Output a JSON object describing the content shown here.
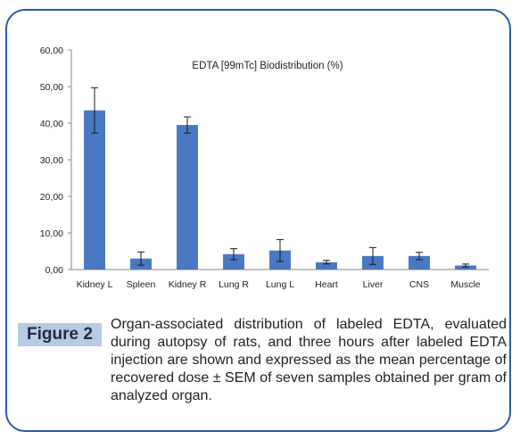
{
  "figure": {
    "label": "Figure 2",
    "caption": "Organ-associated distribution of labeled EDTA, evaluated during autopsy of rats, and three hours after labeled EDTA injection are shown and expressed as the mean percentage of recovered dose ± SEM of seven samples obtained per gram of analyzed organ."
  },
  "chart_data": {
    "type": "bar",
    "title": "EDTA [99mTc] Biodistribution  (%)",
    "xlabel": "",
    "ylabel": "",
    "categories": [
      "Kidney L",
      "Spleen",
      "Kidney R",
      "Lung R",
      "Lung L",
      "Heart",
      "Liver",
      "CNS",
      "Muscle"
    ],
    "values": [
      43.5,
      3.0,
      39.5,
      4.2,
      5.2,
      2.0,
      3.7,
      3.7,
      1.1
    ],
    "errors": [
      6.2,
      1.8,
      2.2,
      1.5,
      3.0,
      0.5,
      2.3,
      1.0,
      0.4
    ],
    "ylim": [
      0,
      60
    ],
    "yticks": [
      "0,00",
      "10,00",
      "20,00",
      "30,00",
      "40,00",
      "50,00",
      "60,00"
    ],
    "bar_color": "#4a78c2",
    "grid": false,
    "error_bars": true
  }
}
